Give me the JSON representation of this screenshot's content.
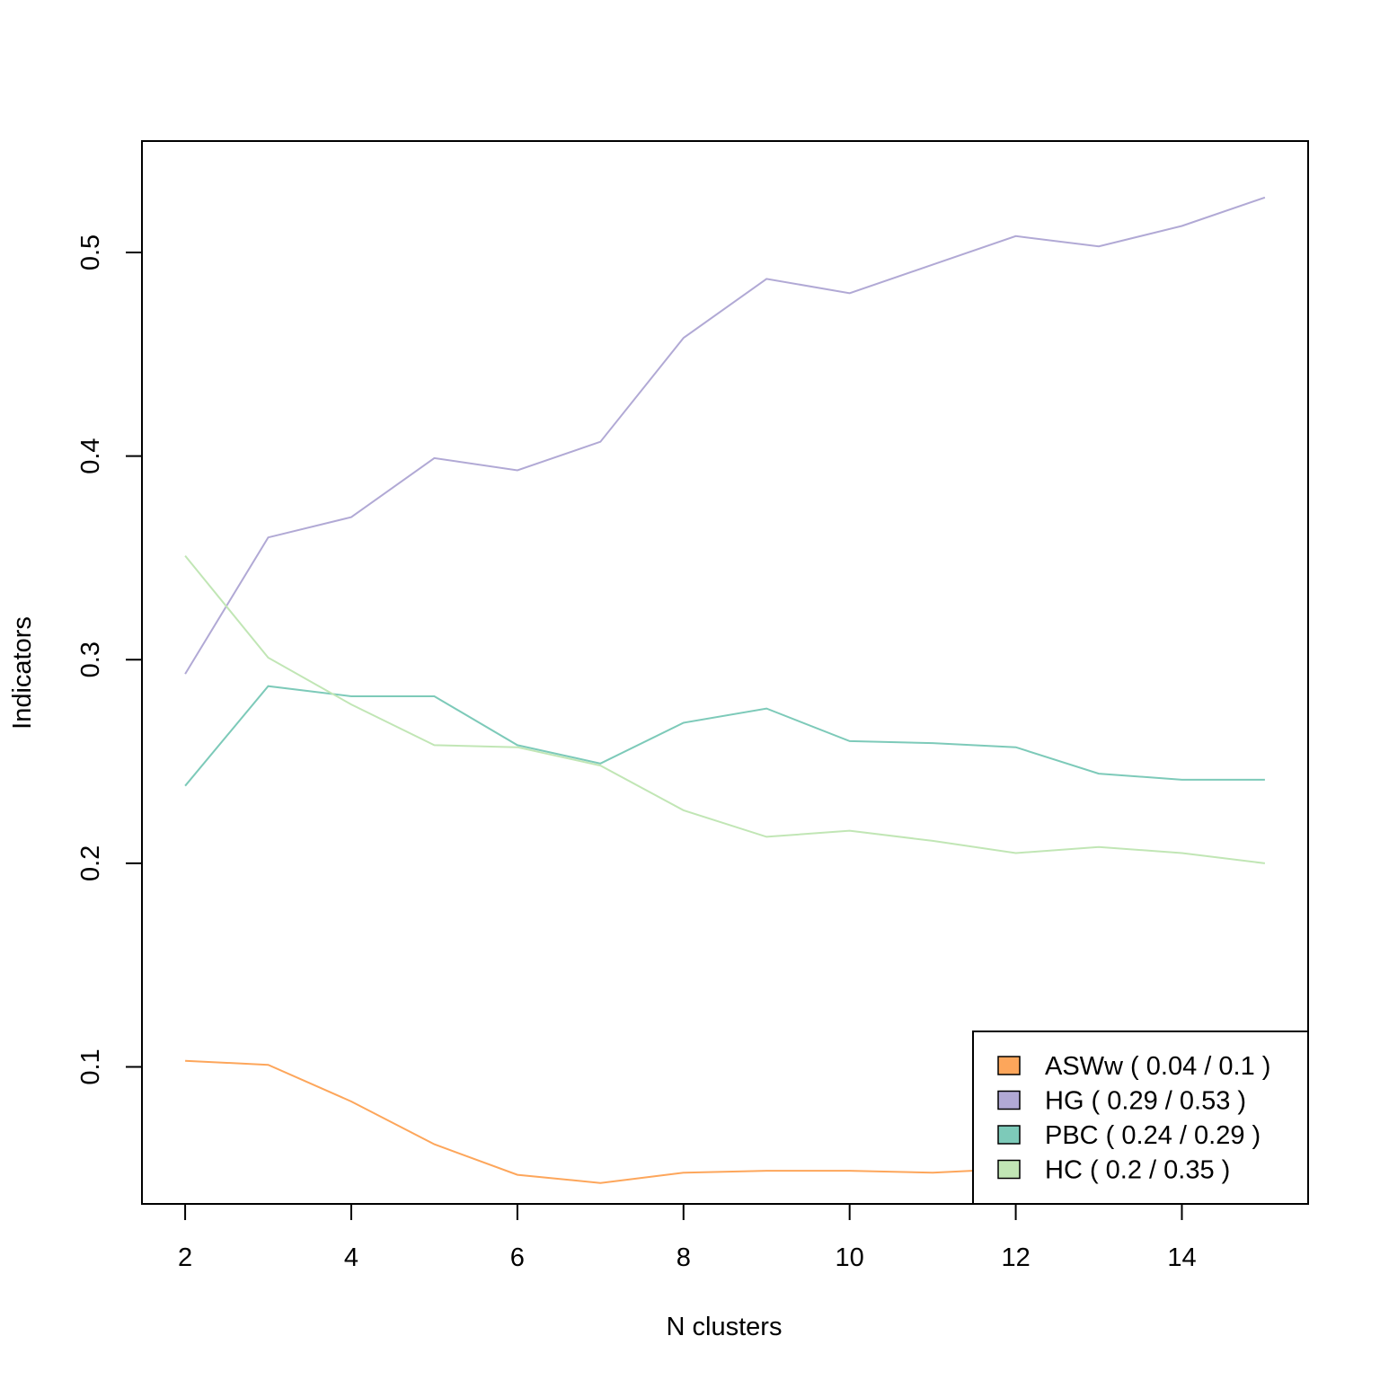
{
  "chart_data": {
    "type": "line",
    "title": "",
    "xlabel": "N clusters",
    "ylabel": "Indicators",
    "x": [
      2,
      3,
      4,
      5,
      6,
      7,
      8,
      9,
      10,
      11,
      12,
      13,
      14,
      15
    ],
    "xticks": [
      "2",
      "4",
      "6",
      "8",
      "10",
      "12",
      "14"
    ],
    "yticks": [
      "0.1",
      "0.2",
      "0.3",
      "0.4",
      "0.5"
    ],
    "xlim": [
      1.48,
      15.52
    ],
    "ylim": [
      0.0327,
      0.5547
    ],
    "grid": false,
    "legend_position": "bottom-right",
    "series": [
      {
        "name": "ASWw ( 0.04 / 0.1 )",
        "color": "#fda65b",
        "values": [
          0.103,
          0.101,
          0.083,
          0.062,
          0.047,
          0.043,
          0.048,
          0.049,
          0.049,
          0.048,
          0.05,
          0.049,
          0.049,
          0.049
        ]
      },
      {
        "name": "HG ( 0.29 / 0.53 )",
        "color": "#b1a9d5",
        "values": [
          0.293,
          0.36,
          0.37,
          0.399,
          0.393,
          0.407,
          0.458,
          0.487,
          0.48,
          0.494,
          0.508,
          0.503,
          0.513,
          0.527
        ]
      },
      {
        "name": "PBC ( 0.24 / 0.29 )",
        "color": "#7dcab9",
        "values": [
          0.238,
          0.287,
          0.282,
          0.282,
          0.258,
          0.249,
          0.269,
          0.276,
          0.26,
          0.259,
          0.257,
          0.244,
          0.241,
          0.241
        ]
      },
      {
        "name": "HC ( 0.2 / 0.35 )",
        "color": "#c1e6b5",
        "values": [
          0.351,
          0.301,
          0.278,
          0.258,
          0.257,
          0.248,
          0.226,
          0.213,
          0.216,
          0.211,
          0.205,
          0.208,
          0.205,
          0.2
        ]
      }
    ]
  }
}
